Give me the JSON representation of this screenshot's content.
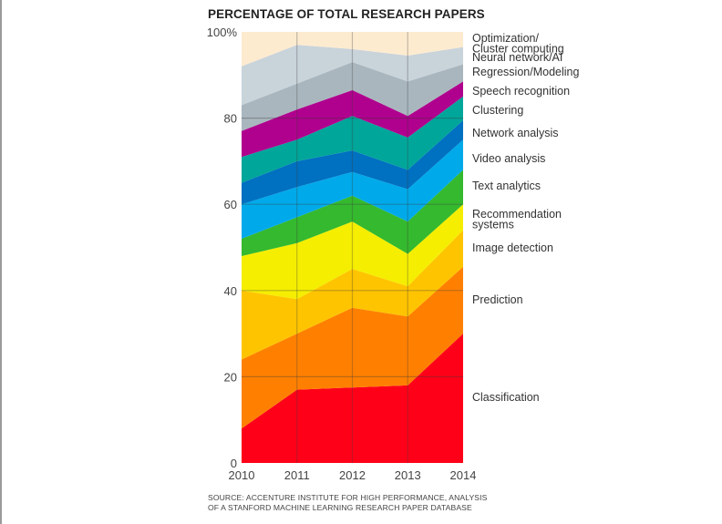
{
  "chart_data": {
    "type": "area",
    "stacked": true,
    "title": "PERCENTAGE OF TOTAL RESEARCH PAPERS",
    "xlabel": "",
    "ylabel": "",
    "x": [
      "2010",
      "2011",
      "2012",
      "2013",
      "2014"
    ],
    "ylim": [
      0,
      100
    ],
    "yticks": [
      0,
      20,
      40,
      60,
      80,
      100
    ],
    "ytick_labels": [
      "0",
      "20",
      "40",
      "60",
      "80",
      "100%"
    ],
    "grid": "horizontal and vertical lines at ticks",
    "legend_position": "right",
    "series": [
      {
        "name": "Classification",
        "color": "#ff0019",
        "values": [
          8,
          17,
          17.5,
          18,
          30
        ]
      },
      {
        "name": "Prediction",
        "color": "#ff8000",
        "values": [
          16,
          13,
          18.5,
          16,
          15.5
        ]
      },
      {
        "name": "Image detection",
        "color": "#ffc400",
        "values": [
          16,
          8,
          9,
          7,
          8.5
        ]
      },
      {
        "name": "Recommendation systems",
        "color": "#f5ee00",
        "values": [
          8,
          13,
          11,
          7.5,
          6
        ]
      },
      {
        "name": "Text analytics",
        "color": "#35b92e",
        "values": [
          4,
          6,
          6,
          7.5,
          8
        ]
      },
      {
        "name": "Video analysis",
        "color": "#00aaea",
        "values": [
          8,
          7,
          5.5,
          7.5,
          7
        ]
      },
      {
        "name": "Network analysis",
        "color": "#0070c0",
        "values": [
          5,
          6,
          5,
          4.5,
          4.5
        ]
      },
      {
        "name": "Clustering",
        "color": "#00a69a",
        "values": [
          6,
          5,
          8,
          7.5,
          5.5
        ]
      },
      {
        "name": "Speech recognition",
        "color": "#b0008e",
        "values": [
          6,
          7,
          6,
          5,
          3.5
        ]
      },
      {
        "name": "Regression/Modeling",
        "color": "#a9b6be",
        "values": [
          6,
          6,
          6.5,
          8,
          4
        ]
      },
      {
        "name": "Neural network/AI",
        "color": "#c9d3da",
        "values": [
          9,
          9,
          3,
          6,
          4
        ]
      },
      {
        "name": "Optimization/ Cluster computing",
        "color": "#fdebd0",
        "values": [
          8,
          3,
          4,
          5.5,
          3.5
        ]
      }
    ],
    "legend_labels": [
      {
        "series": "Optimization/ Cluster computing",
        "lines": [
          "Optimization/",
          "Cluster computing"
        ]
      },
      {
        "series": "Neural network/AI",
        "lines": [
          "Neural network/AI"
        ]
      },
      {
        "series": "Regression/Modeling",
        "lines": [
          "Regression/Modeling"
        ]
      },
      {
        "series": "Speech recognition",
        "lines": [
          "Speech recognition"
        ]
      },
      {
        "series": "Clustering",
        "lines": [
          "Clustering"
        ]
      },
      {
        "series": "Network analysis",
        "lines": [
          "Network analysis"
        ]
      },
      {
        "series": "Video analysis",
        "lines": [
          "Video analysis"
        ]
      },
      {
        "series": "Text analytics",
        "lines": [
          "Text analytics"
        ]
      },
      {
        "series": "Recommendation systems",
        "lines": [
          "Recommendation",
          "systems"
        ]
      },
      {
        "series": "Image detection",
        "lines": [
          "Image detection"
        ]
      },
      {
        "series": "Prediction",
        "lines": [
          "Prediction"
        ]
      },
      {
        "series": "Classification",
        "lines": [
          "Classification"
        ]
      }
    ],
    "source": [
      "SOURCE:  ACCENTURE INSTITUTE FOR HIGH PERFORMANCE, ANALYSIS",
      "OF A STANFORD MACHINE LEARNING RESEARCH PAPER DATABASE"
    ]
  }
}
